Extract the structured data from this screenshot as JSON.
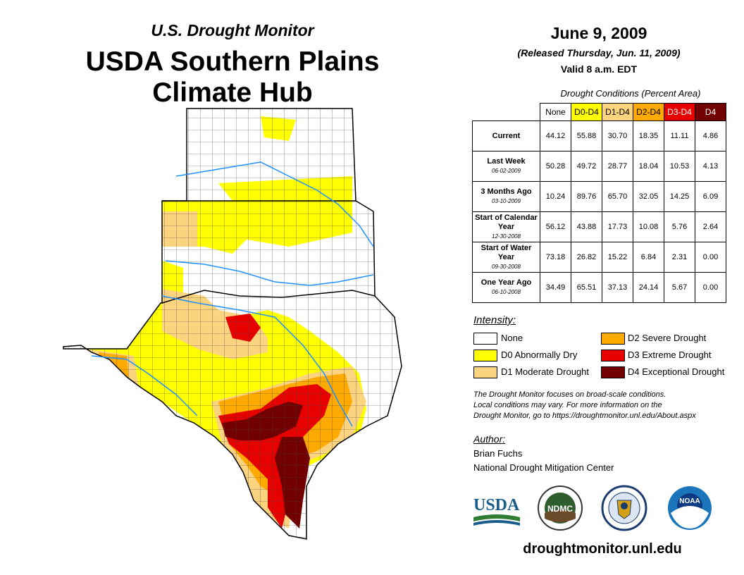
{
  "header": {
    "subtitle": "U.S. Drought Monitor",
    "title_line1": "USDA Southern Plains",
    "title_line2": "Climate Hub",
    "date": "June 9, 2009",
    "released": "(Released Thursday, Jun. 11, 2009)",
    "valid": "Valid 8 a.m. EDT"
  },
  "table": {
    "caption": "Drought Conditions (Percent Area)",
    "columns": [
      "None",
      "D0-D4",
      "D1-D4",
      "D2-D4",
      "D3-D4",
      "D4"
    ],
    "column_colors": [
      "#ffffff",
      "#ffff00",
      "#fcd37f",
      "#ffaa00",
      "#e60000",
      "#730000"
    ],
    "rows": [
      {
        "label": "Current",
        "date": "",
        "values": [
          "44.12",
          "55.88",
          "30.70",
          "18.35",
          "11.11",
          "4.86"
        ]
      },
      {
        "label": "Last Week",
        "date": "06-02-2009",
        "values": [
          "50.28",
          "49.72",
          "28.77",
          "18.04",
          "10.53",
          "4.13"
        ]
      },
      {
        "label": "3 Months Ago",
        "date": "03-10-2009",
        "values": [
          "10.24",
          "89.76",
          "65.70",
          "32.05",
          "14.25",
          "6.09"
        ]
      },
      {
        "label": "Start of Calendar Year",
        "date": "12-30-2008",
        "values": [
          "56.12",
          "43.88",
          "17.73",
          "10.08",
          "5.76",
          "2.64"
        ]
      },
      {
        "label": "Start of Water Year",
        "date": "09-30-2008",
        "values": [
          "73.18",
          "26.82",
          "15.22",
          "6.84",
          "2.31",
          "0.00"
        ]
      },
      {
        "label": "One Year Ago",
        "date": "06-10-2008",
        "values": [
          "34.49",
          "65.51",
          "37.13",
          "24.14",
          "5.67",
          "0.00"
        ]
      }
    ]
  },
  "legend": {
    "title": "Intensity:",
    "items": [
      {
        "label": "None",
        "color": "#ffffff"
      },
      {
        "label": "D0 Abnormally Dry",
        "color": "#ffff00"
      },
      {
        "label": "D1 Moderate Drought",
        "color": "#fcd37f"
      },
      {
        "label": "D2 Severe Drought",
        "color": "#ffaa00"
      },
      {
        "label": "D3 Extreme Drought",
        "color": "#e60000"
      },
      {
        "label": "D4 Exceptional Drought",
        "color": "#730000"
      }
    ]
  },
  "note": {
    "line1": "The Drought Monitor focuses on broad-scale conditions.",
    "line2": "Local conditions may vary. For more information on the",
    "line3": "Drought Monitor, go to https://droughtmonitor.unl.edu/About.aspx"
  },
  "author": {
    "title": "Author:",
    "name": "Brian Fuchs",
    "org": "National Drought Mitigation Center"
  },
  "logos": {
    "usda": "USDA",
    "ndmc": "NDMC",
    "noaa": "NOAA"
  },
  "footer": {
    "url": "droughtmonitor.unl.edu"
  },
  "colors": {
    "river": "#1e90ff",
    "county_line": "#444444"
  }
}
